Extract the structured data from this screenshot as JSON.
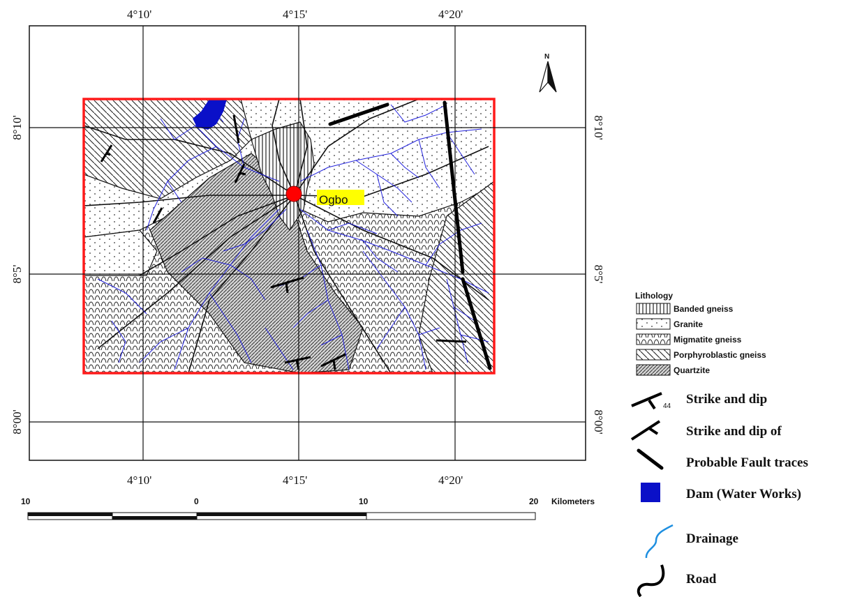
{
  "map": {
    "north_symbol": "north-arrow-icon",
    "town_label": "Ogbo",
    "longitude_labels": [
      "4°10'",
      "4°15'",
      "4°20'"
    ],
    "latitude_labels_left": [
      "8°10'",
      "8°5'",
      "8°00'"
    ],
    "latitude_labels_right": [
      "8°10'",
      "8°5'",
      "8°00'"
    ],
    "colors": {
      "boundary": "#ff1a1a",
      "drainage": "#2222dd",
      "dam": "#0a10c8",
      "town_marker": "#ff0000",
      "town_label_bg": "#ffff00",
      "road": "#111111"
    }
  },
  "lithology": {
    "title": "Lithology",
    "items": [
      {
        "label": "Banded gneiss",
        "pattern": "vertical-lines"
      },
      {
        "label": "Granite",
        "pattern": "dots"
      },
      {
        "label": "Migmatite gneiss",
        "pattern": "arcs"
      },
      {
        "label": "Porphyroblastic gneiss",
        "pattern": "diagonal-lines"
      },
      {
        "label": "Quartzite",
        "pattern": "dense-diagonal"
      }
    ]
  },
  "legend": {
    "strike_dip": "Strike and dip",
    "strike_dip_of": "Strike and dip of",
    "fault": "Probable Fault traces",
    "dam": "Dam (Water Works)",
    "drainage": "Drainage",
    "road": "Road"
  },
  "scale_bar": {
    "labels": [
      "10",
      "0",
      "10",
      "20"
    ],
    "unit": "Kilometers"
  }
}
